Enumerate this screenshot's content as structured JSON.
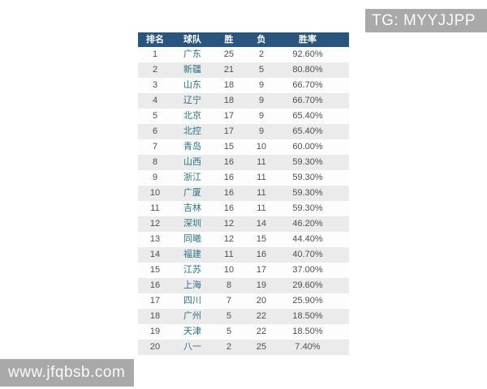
{
  "watermarks": {
    "top": "TG: MYYJJPP",
    "bottom": "www.jfqbsb.com"
  },
  "table": {
    "columns": {
      "rank": "排名",
      "team": "球队",
      "wins": "胜",
      "losses": "负",
      "win_rate": "胜率"
    },
    "rows": [
      {
        "rank": "1",
        "team": "广东",
        "wins": "25",
        "losses": "2",
        "win_rate": "92.60%"
      },
      {
        "rank": "2",
        "team": "新疆",
        "wins": "21",
        "losses": "5",
        "win_rate": "80.80%"
      },
      {
        "rank": "3",
        "team": "山东",
        "wins": "18",
        "losses": "9",
        "win_rate": "66.70%"
      },
      {
        "rank": "4",
        "team": "辽宁",
        "wins": "18",
        "losses": "9",
        "win_rate": "66.70%"
      },
      {
        "rank": "5",
        "team": "北京",
        "wins": "17",
        "losses": "9",
        "win_rate": "65.40%"
      },
      {
        "rank": "6",
        "team": "北控",
        "wins": "17",
        "losses": "9",
        "win_rate": "65.40%"
      },
      {
        "rank": "7",
        "team": "青岛",
        "wins": "15",
        "losses": "10",
        "win_rate": "60.00%"
      },
      {
        "rank": "8",
        "team": "山西",
        "wins": "16",
        "losses": "11",
        "win_rate": "59.30%"
      },
      {
        "rank": "9",
        "team": "浙江",
        "wins": "16",
        "losses": "11",
        "win_rate": "59.30%"
      },
      {
        "rank": "10",
        "team": "广厦",
        "wins": "16",
        "losses": "11",
        "win_rate": "59.30%"
      },
      {
        "rank": "11",
        "team": "吉林",
        "wins": "16",
        "losses": "11",
        "win_rate": "59.30%"
      },
      {
        "rank": "12",
        "team": "深圳",
        "wins": "12",
        "losses": "14",
        "win_rate": "46.20%"
      },
      {
        "rank": "13",
        "team": "同曦",
        "wins": "12",
        "losses": "15",
        "win_rate": "44.40%"
      },
      {
        "rank": "14",
        "team": "福建",
        "wins": "11",
        "losses": "16",
        "win_rate": "40.70%"
      },
      {
        "rank": "15",
        "team": "江苏",
        "wins": "10",
        "losses": "17",
        "win_rate": "37.00%"
      },
      {
        "rank": "16",
        "team": "上海",
        "wins": "8",
        "losses": "19",
        "win_rate": "29.60%"
      },
      {
        "rank": "17",
        "team": "四川",
        "wins": "7",
        "losses": "20",
        "win_rate": "25.90%"
      },
      {
        "rank": "18",
        "team": "广州",
        "wins": "5",
        "losses": "22",
        "win_rate": "18.50%"
      },
      {
        "rank": "19",
        "team": "天津",
        "wins": "5",
        "losses": "22",
        "win_rate": "18.50%"
      },
      {
        "rank": "20",
        "team": "八一",
        "wins": "2",
        "losses": "25",
        "win_rate": "7.40%"
      }
    ]
  },
  "colors": {
    "header_bg": "#2a567e",
    "header_text": "#ffffff",
    "row_alt_bg": "#ebebeb",
    "team_text": "#2e7187",
    "number_text": "#4f4f4f",
    "watermark_bg": "#a9a9a9"
  }
}
